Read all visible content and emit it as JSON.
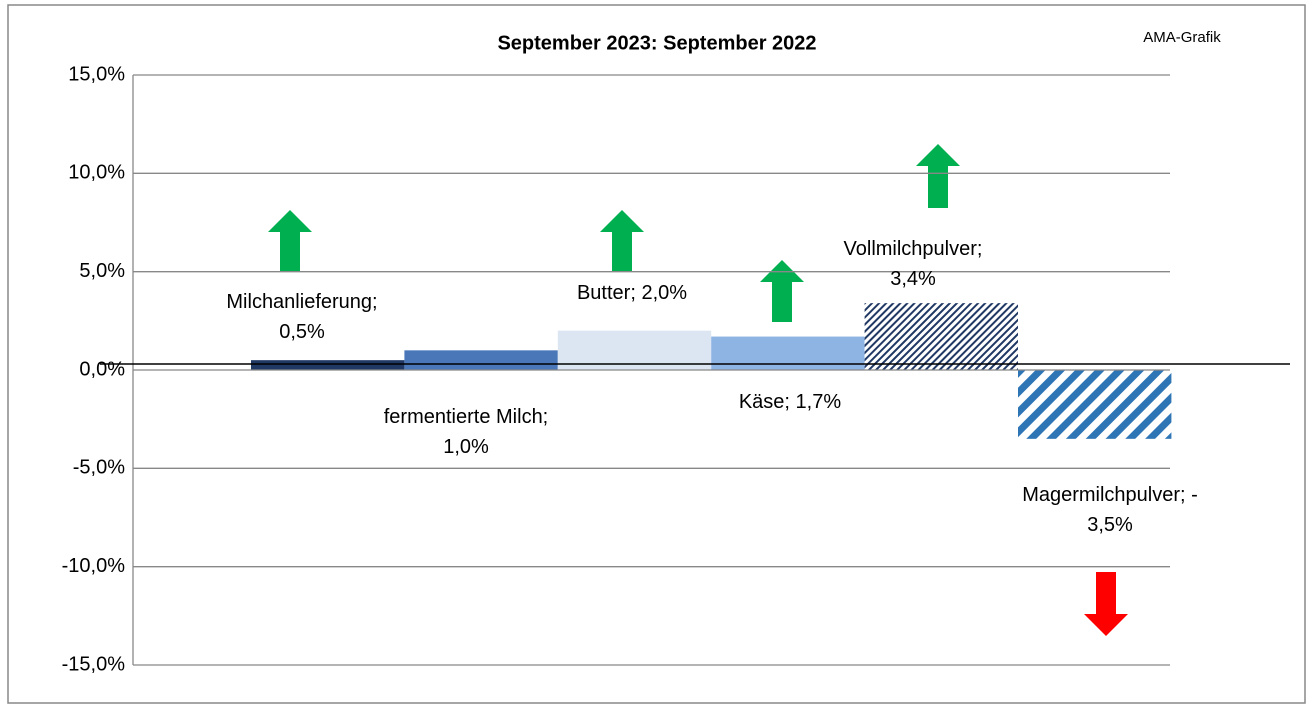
{
  "chart_data": {
    "type": "bar",
    "title": "September 2023: September 2022",
    "note": "AMA-Grafik",
    "values": [
      0.5,
      1.0,
      2.0,
      1.7,
      3.4,
      -3.5
    ],
    "value_labels": [
      "Milchanlieferung;\n0,5%",
      "fermentierte Milch;\n1,0%",
      "Butter; 2,0%",
      "Käse; 1,7%",
      "Vollmilchpulver;\n3,4%",
      "Magermilchpulver; -\n3,5%"
    ],
    "colors": [
      "#1f3864",
      "#4a77b8",
      "#dce6f2",
      "#8eb4e3",
      "#1f3864",
      "#2e75b6"
    ],
    "hatched": [
      false,
      false,
      false,
      false,
      true,
      true
    ],
    "ylim": [
      -15,
      15
    ],
    "yticks": [
      {
        "value": -15,
        "label": "-15,0%"
      },
      {
        "value": -10,
        "label": "-10,0%"
      },
      {
        "value": -5,
        "label": "-5,0%"
      },
      {
        "value": 0,
        "label": "0,0%"
      },
      {
        "value": 5,
        "label": "5,0%"
      },
      {
        "value": 10,
        "label": "10,0%"
      },
      {
        "value": 15,
        "label": "15,0%"
      }
    ],
    "grid": true
  }
}
